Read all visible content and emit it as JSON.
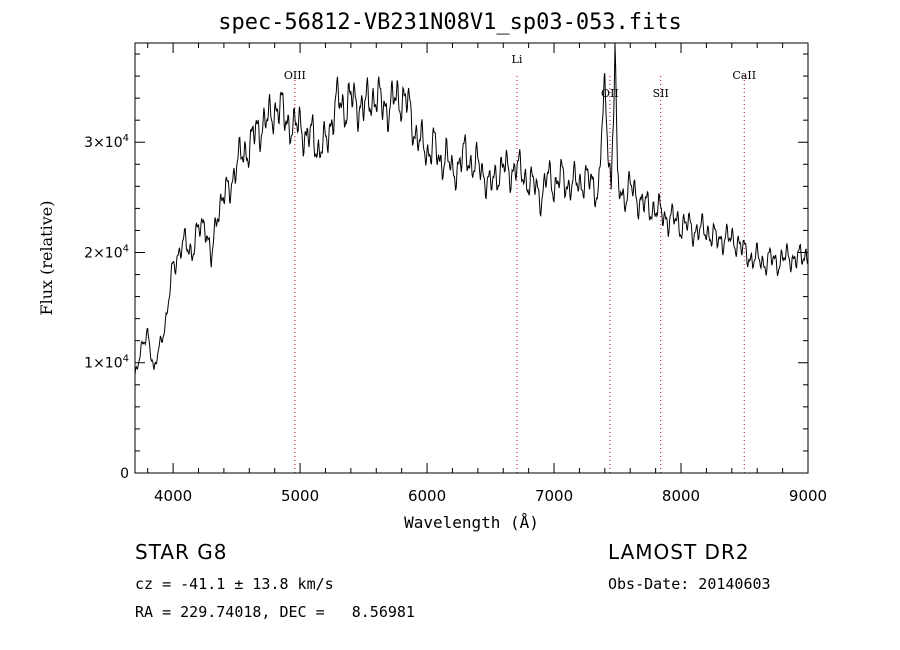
{
  "info": {
    "object_class": "STAR    G8",
    "survey": "LAMOST DR2",
    "cz": "cz = -41.1 ± 13.8 km/s",
    "obs_date": "Obs-Date: 20140603",
    "radec": "RA = 229.74018, DEC =   8.56981"
  },
  "chart_data": {
    "type": "line",
    "title": "spec-56812-VB231N08V1_sp03-053.fits",
    "xlabel": "Wavelength (Å)",
    "ylabel": "Flux (relative)",
    "xlim": [
      3700,
      9000
    ],
    "ylim": [
      0,
      39000
    ],
    "x_ticks": [
      4000,
      5000,
      6000,
      7000,
      8000,
      9000
    ],
    "y_ticks": [
      {
        "value": 0,
        "mantissa": "0",
        "exp": ""
      },
      {
        "value": 10000,
        "mantissa": "1×10",
        "exp": "4"
      },
      {
        "value": 20000,
        "mantissa": "2×10",
        "exp": "4"
      },
      {
        "value": 30000,
        "mantissa": "3×10",
        "exp": "4"
      }
    ],
    "line_color": "#000000",
    "marker_color": "#cc0000",
    "lines": [
      {
        "name": "OIII",
        "wavelength": 4959
      },
      {
        "name": "Li",
        "wavelength": 6708
      },
      {
        "name": "OII",
        "wavelength": 7440
      },
      {
        "name": "SII",
        "wavelength": 7840
      },
      {
        "name": "CaII",
        "wavelength": 8498
      }
    ],
    "series": [
      {
        "x": [
          3700,
          3750,
          3800,
          3850,
          3900,
          3950,
          4000,
          4050,
          4100,
          4150,
          4200,
          4250,
          4300,
          4350,
          4400,
          4450,
          4500,
          4550,
          4600,
          4650,
          4700,
          4750,
          4800,
          4850,
          4900,
          4950,
          5000,
          5050,
          5100,
          5150,
          5200,
          5250,
          5300,
          5350,
          5400,
          5450,
          5500,
          5550,
          5600,
          5650,
          5700,
          5750,
          5800,
          5850,
          5900,
          5950,
          6000,
          6050,
          6100,
          6150,
          6200,
          6250,
          6300,
          6350,
          6400,
          6450,
          6500,
          6550,
          6600,
          6650,
          6700,
          6750,
          6800,
          6850,
          6900,
          6950,
          7000,
          7050,
          7100,
          7150,
          7200,
          7250,
          7300,
          7350,
          7380,
          7400,
          7450,
          7480,
          7500,
          7550,
          7600,
          7650,
          7700,
          7750,
          7800,
          7850,
          7900,
          7950,
          8000,
          8050,
          8100,
          8150,
          8200,
          8250,
          8300,
          8350,
          8400,
          8450,
          8500,
          8550,
          8600,
          8650,
          8700,
          8750,
          8800,
          8850,
          8900,
          8950,
          9000
        ],
        "y": [
          9000,
          11000,
          13000,
          9000,
          12000,
          14000,
          19000,
          20000,
          21000,
          20000,
          22000,
          23000,
          19000,
          24000,
          25000,
          26000,
          28000,
          29000,
          29500,
          31000,
          31500,
          32000,
          33000,
          33000,
          32000,
          31000,
          32000,
          30000,
          31000,
          29000,
          30000,
          32000,
          34000,
          33000,
          34000,
          33500,
          33000,
          34000,
          34000,
          33500,
          33000,
          34000,
          34000,
          33500,
          31000,
          30000,
          29000,
          30000,
          28000,
          29000,
          27000,
          28000,
          29000,
          28000,
          28000,
          27000,
          26000,
          27000,
          28000,
          27000,
          28000,
          27000,
          26500,
          26000,
          25000,
          27000,
          26000,
          27000,
          26000,
          26500,
          26000,
          27000,
          26000,
          25500,
          32000,
          34000,
          26000,
          38500,
          26000,
          25000,
          26000,
          25000,
          24500,
          24000,
          24000,
          23500,
          23000,
          23000,
          22500,
          22500,
          22000,
          22000,
          22000,
          21500,
          21000,
          21500,
          21000,
          21000,
          20000,
          19500,
          19500,
          19000,
          19500,
          19000,
          19500,
          19500,
          19500,
          19500,
          20000
        ]
      }
    ]
  }
}
